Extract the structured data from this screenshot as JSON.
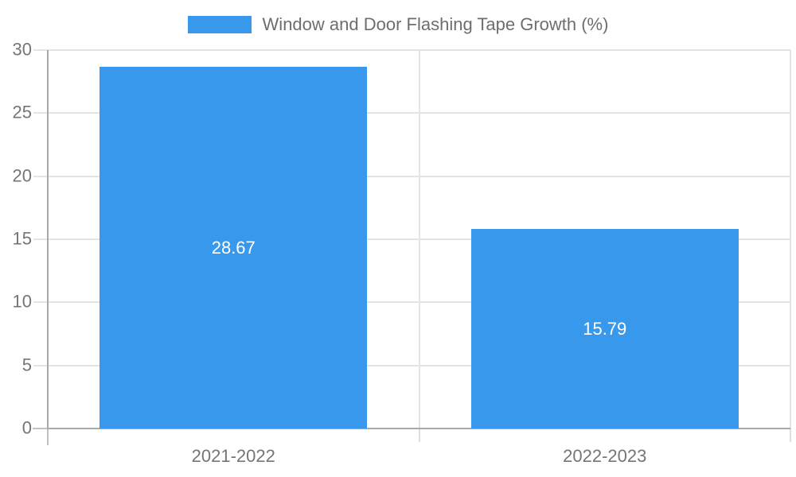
{
  "chart_data": {
    "type": "bar",
    "legend_label": "Window and Door Flashing Tape Growth (%)",
    "categories": [
      "2021-2022",
      "2022-2023"
    ],
    "series": [
      {
        "name": "Window and Door Flashing Tape Growth (%)",
        "values": [
          28.67,
          15.79
        ]
      }
    ],
    "value_labels": [
      "28.67",
      "15.79"
    ],
    "ylim": [
      0,
      30
    ],
    "ytick_step": 5,
    "ytick_labels": [
      "0",
      "5",
      "10",
      "15",
      "20",
      "25",
      "30"
    ],
    "grid": true,
    "legend_position": "top-center",
    "xlabel": "",
    "ylabel": "",
    "colors": {
      "bar": "#3899ec",
      "value_label_text": "#ffffff",
      "gridline": "#e4e4e4",
      "axis_line": "#a9a9a9",
      "tick_line": "#c2c2c2",
      "tick_line_light": "#dedede",
      "tick_text": "#757575",
      "legend_text": "#6e6e6e",
      "background": "#ffffff"
    }
  }
}
